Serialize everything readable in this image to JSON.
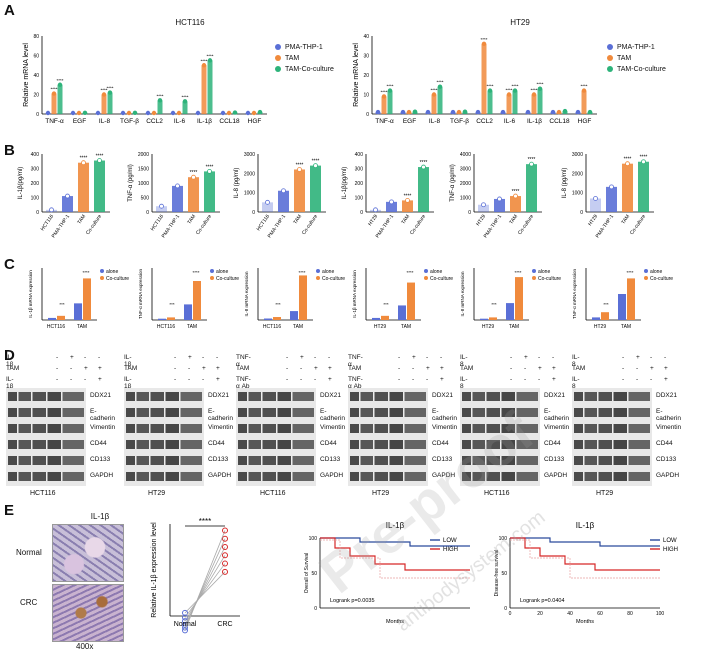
{
  "colors": {
    "blue": "#5a6fd6",
    "orange": "#f08a3c",
    "green": "#2db37a",
    "grey": "#aaa",
    "red": "#d62828",
    "navy": "#2b4a9c"
  },
  "panelA": {
    "label": "A",
    "ylabel": "Relative  mRNA level",
    "legend": [
      "PMA-THP-1",
      "TAM",
      "TAM-Co-culture"
    ],
    "charts": [
      {
        "title": "HCT116",
        "categories": [
          "TNF-α",
          "EGF",
          "IL-8",
          "TGF-β",
          "CCL2",
          "IL-6",
          "IL-1β",
          "CCL18",
          "HGF"
        ],
        "yticks": [
          "0",
          "20",
          "40",
          "60",
          "80"
        ],
        "series": [
          [
            1,
            1,
            1,
            1,
            1,
            1,
            1,
            1,
            1
          ],
          [
            21,
            1,
            20,
            1,
            1,
            1,
            50,
            1,
            1
          ],
          [
            30,
            1.2,
            22,
            1.2,
            14,
            13,
            55,
            1.5,
            2
          ]
        ]
      },
      {
        "title": "HT29",
        "categories": [
          "TNF-α",
          "EGF",
          "IL-8",
          "TGF-β",
          "CCL2",
          "IL-6",
          "IL-1β",
          "CCL18",
          "HGF"
        ],
        "yticks": [
          "0",
          "10",
          "20",
          "30",
          "40"
        ],
        "series": [
          [
            1,
            1,
            1,
            1,
            1,
            1,
            1,
            1,
            1
          ],
          [
            9,
            1,
            10,
            1,
            36,
            10,
            10,
            1,
            12
          ],
          [
            12,
            1.2,
            14,
            1.2,
            12,
            12,
            13,
            1.5,
            1
          ]
        ]
      }
    ]
  },
  "panelB": {
    "label": "B",
    "charts": [
      {
        "ylabel": "IL-1β(pg/ml)",
        "yticks": [
          "0",
          "100",
          "200",
          "300",
          "400"
        ],
        "ymax": 400,
        "categories": [
          "HCT116",
          "PMA-THP-1",
          "TAM",
          "Co-culture"
        ],
        "values": [
          15,
          110,
          340,
          355
        ]
      },
      {
        "ylabel": "TNF-α (pg/ml)",
        "yticks": [
          "0",
          "500",
          "1000",
          "1500",
          "2000"
        ],
        "ymax": 2000,
        "categories": [
          "HCT116",
          "PMA-THP-1",
          "TAM",
          "Co-culture"
        ],
        "values": [
          200,
          900,
          1200,
          1400
        ]
      },
      {
        "ylabel": "IL-8 (pg/ml)",
        "yticks": [
          "0",
          "1000",
          "2000",
          "3000"
        ],
        "ymax": 3000,
        "categories": [
          "HCT116",
          "PMA-THP-1",
          "TAM",
          "Co-culture"
        ],
        "values": [
          500,
          1100,
          2200,
          2400
        ]
      },
      {
        "ylabel": "IL-1β(pg/ml)",
        "yticks": [
          "0",
          "100",
          "200",
          "300",
          "400"
        ],
        "ymax": 400,
        "categories": [
          "HT29",
          "PMA-THP-1",
          "TAM",
          "Co-culture"
        ],
        "values": [
          15,
          70,
          80,
          310
        ]
      },
      {
        "ylabel": "TNF-α (pg/ml)",
        "yticks": [
          "0",
          "1000",
          "2000",
          "3000",
          "4000"
        ],
        "ymax": 4000,
        "categories": [
          "HT29",
          "PMA-THP-1",
          "TAM",
          "Co-culture"
        ],
        "values": [
          500,
          900,
          1100,
          3300
        ]
      },
      {
        "ylabel": "IL-8 (pg/ml)",
        "yticks": [
          "0",
          "1000",
          "2000",
          "3000"
        ],
        "ymax": 3000,
        "categories": [
          "HT29",
          "PMA-THP-1",
          "TAM",
          "Co-culture"
        ],
        "values": [
          700,
          1300,
          2500,
          2600
        ]
      }
    ]
  },
  "panelC": {
    "label": "C",
    "legend": [
      "alone",
      "Co-culture"
    ],
    "charts": [
      {
        "ylabel": "IL-1β mRNA expression",
        "categories": [
          "HCT116",
          "TAM"
        ],
        "alone": [
          1,
          8
        ],
        "co": [
          2,
          20
        ],
        "ymax": 25
      },
      {
        "ylabel": "TNF-α mRNA expression",
        "categories": [
          "HCT116",
          "TAM"
        ],
        "alone": [
          1,
          12
        ],
        "co": [
          2,
          30
        ],
        "ymax": 40
      },
      {
        "ylabel": "IL-8 mRNA expression",
        "categories": [
          "HCT116",
          "TAM"
        ],
        "alone": [
          1,
          6
        ],
        "co": [
          2,
          30
        ],
        "ymax": 35
      },
      {
        "ylabel": "IL-1β mRNA expression",
        "categories": [
          "HT29",
          "TAM"
        ],
        "alone": [
          1,
          7
        ],
        "co": [
          2,
          18
        ],
        "ymax": 25
      },
      {
        "ylabel": "IL-8 mRNA expression",
        "categories": [
          "HT29",
          "TAM"
        ],
        "alone": [
          1,
          13
        ],
        "co": [
          2,
          33
        ],
        "ymax": 40
      },
      {
        "ylabel": "TNF-α mRNA expression",
        "categories": [
          "HT29",
          "TAM"
        ],
        "alone": [
          1,
          10
        ],
        "co": [
          3,
          16
        ],
        "ymax": 20
      }
    ]
  },
  "panelD": {
    "label": "D",
    "blots": [
      {
        "treat": [
          "IL-1β",
          "TAM",
          "IL-1β Ab"
        ],
        "cell": "HCT116"
      },
      {
        "treat": [
          "IL-1β",
          "TAM",
          "IL-1β Ab"
        ],
        "cell": "HT29"
      },
      {
        "treat": [
          "TNF-α",
          "TAM",
          "TNF-α Ab"
        ],
        "cell": "HCT116"
      },
      {
        "treat": [
          "TNF-α",
          "TAM",
          "TNF-α Ab"
        ],
        "cell": "HT29"
      },
      {
        "treat": [
          "IL-8",
          "TAM",
          "IL-8 Ab"
        ],
        "cell": "HCT116"
      },
      {
        "treat": [
          "IL-8",
          "TAM",
          "IL-8 Ab"
        ],
        "cell": "HT29"
      }
    ],
    "proteins": [
      "DDX21",
      "E-cadherin",
      "Vimentin",
      "CD44",
      "CD133",
      "GAPDH"
    ],
    "signs": [
      [
        "-",
        "+",
        "-",
        "-"
      ],
      [
        "-",
        "-",
        "+",
        "+"
      ],
      [
        "-",
        "-",
        "-",
        "+"
      ]
    ]
  },
  "panelE": {
    "label": "E",
    "ihc_title": "IL-1β",
    "rows": [
      "Normal",
      "CRC"
    ],
    "mag": "400x",
    "paired": {
      "ylabel": "Relative IL-1β expression level",
      "categories": [
        "Normal",
        "CRC"
      ],
      "sig": "****"
    },
    "km": [
      {
        "title": "IL-1β",
        "ylabel": "Overall of Survival",
        "xlabel": "Months",
        "p": "Logrank p=0.0035",
        "yticks": [
          "0",
          "50",
          "100"
        ],
        "legend": [
          "LOW",
          "HIGH"
        ]
      },
      {
        "title": "IL-1β",
        "ylabel": "Disease-free survival",
        "xlabel": "Months",
        "p": "Logrank p=0.0404",
        "yticks": [
          "0",
          "50",
          "100"
        ],
        "xticks": [
          "0",
          "20",
          "40",
          "60",
          "80",
          "100"
        ],
        "legend": [
          "LOW",
          "HIGH"
        ]
      }
    ]
  },
  "watermark": {
    "main": "Pre-proof",
    "sub": "antibodysystem.com"
  }
}
